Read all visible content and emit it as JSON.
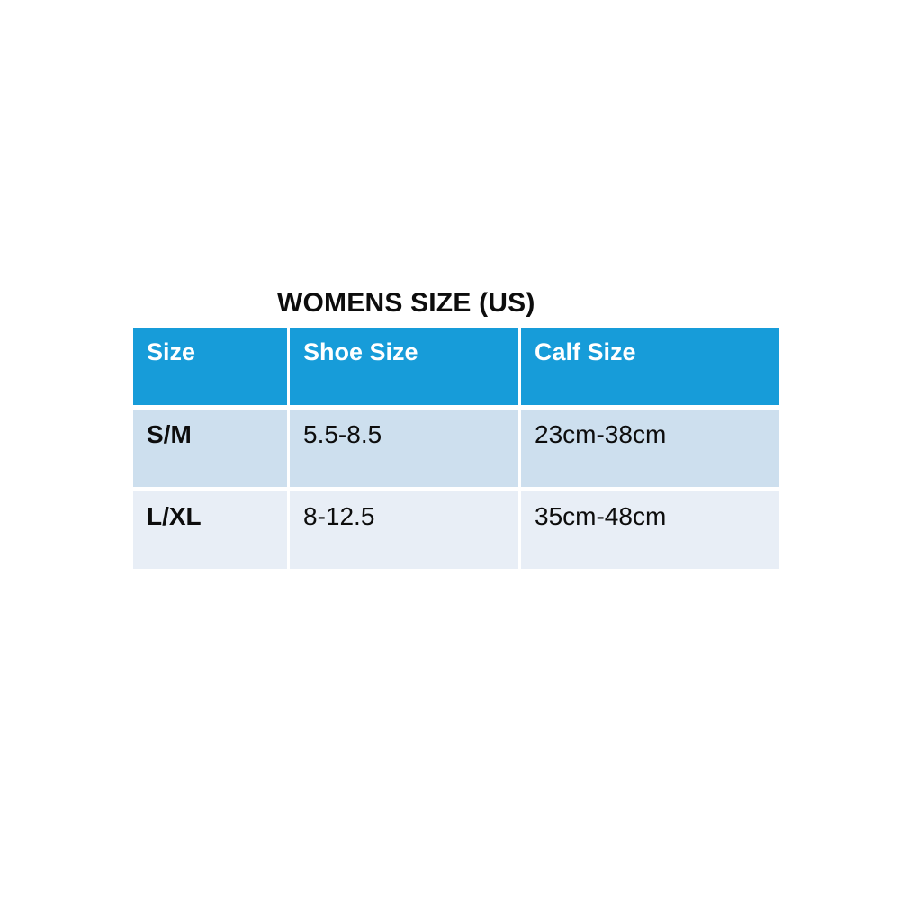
{
  "title": "WOMENS SIZE (US)",
  "table": {
    "headers": [
      "Size",
      "Shoe Size",
      "Calf Size"
    ],
    "rows": [
      {
        "size": "S/M",
        "shoe_size": "5.5-8.5",
        "calf_size": "23cm-38cm"
      },
      {
        "size": "L/XL",
        "shoe_size": "8-12.5",
        "calf_size": "35cm-48cm"
      }
    ]
  },
  "colors": {
    "header_bg": "#179CD9",
    "header_text": "#FFFFFF",
    "row_odd_bg": "#CDDFEE",
    "row_even_bg": "#E8EEF6",
    "text": "#0D0D0D"
  },
  "chart_data": {
    "type": "table",
    "title": "WOMENS SIZE (US)",
    "columns": [
      "Size",
      "Shoe Size",
      "Calf Size"
    ],
    "rows": [
      [
        "S/M",
        "5.5-8.5",
        "23cm-38cm"
      ],
      [
        "L/XL",
        "8-12.5",
        "35cm-48cm"
      ]
    ],
    "layout": {
      "header_fill": "#179CD9",
      "row_fills": [
        "#CDDFEE",
        "#E8EEF6"
      ],
      "cell_text_align": "top-left",
      "gridlines": "white gaps between cells"
    }
  }
}
